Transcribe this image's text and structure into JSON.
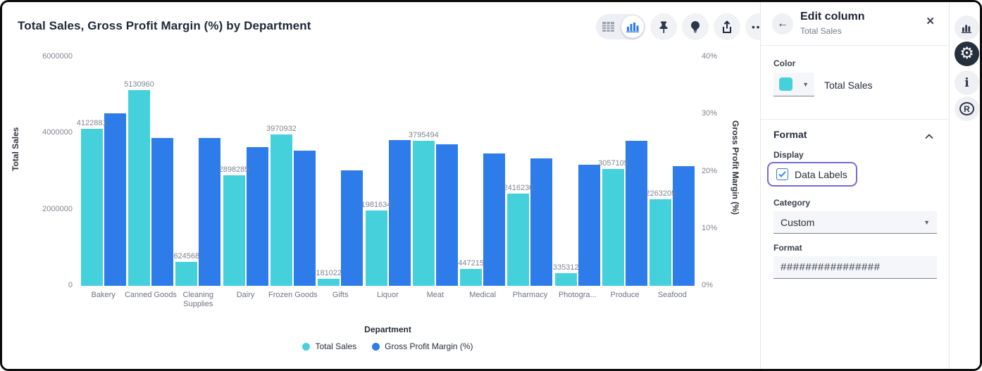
{
  "chart_data": {
    "type": "bar",
    "title": "Total Sales, Gross Profit Margin (%) by Department",
    "categories": [
      "Bakery",
      "Canned Goods",
      "Cleaning Supplies",
      "Dairy",
      "Frozen Goods",
      "Gifts",
      "Liquor",
      "Meat",
      "Medical",
      "Pharmacy",
      "Photogra...",
      "Produce",
      "Seafood"
    ],
    "series": [
      {
        "name": "Total Sales",
        "axis": "left",
        "color": "#45d1dc",
        "data_labels": true,
        "values": [
          4122881,
          5130960,
          624568,
          2898285,
          3970932,
          181022,
          1981634,
          3795494,
          447215,
          2416230,
          335312,
          3057105,
          2263205
        ]
      },
      {
        "name": "Gross Profit Margin (%)",
        "axis": "right",
        "color": "#2e7bea",
        "data_labels": false,
        "values": [
          30.2,
          25.9,
          25.9,
          24.3,
          23.6,
          20.2,
          25.5,
          24.8,
          23.1,
          22.3,
          21.2,
          25.3,
          20.9
        ]
      }
    ],
    "xlabel": "Department",
    "left_axis": {
      "label": "Total Sales",
      "max": 6000000,
      "ticks": [
        "6000000",
        "4000000",
        "2000000",
        "0"
      ]
    },
    "right_axis": {
      "label": "Gross Profit Margin (%)",
      "max": 40,
      "ticks": [
        "40%",
        "30%",
        "20%",
        "10%",
        "0%"
      ]
    },
    "grid": false,
    "legend_position": "bottom"
  },
  "toolbar": {
    "table_view_icon": "table-grid",
    "chart_view_icon": "bar-chart",
    "pin_icon": "pushpin",
    "explore_icon": "lightbulb",
    "export_icon": "share-up-arrow",
    "more_label": "•••"
  },
  "panel": {
    "title": "Edit column",
    "subtitle": "Total Sales",
    "back_icon": "←",
    "close_icon": "✕",
    "color_section": {
      "label": "Color",
      "swatch_color": "#45d1dc",
      "value": "Total Sales"
    },
    "format_section": {
      "heading": "Format",
      "display_label": "Display",
      "data_labels": {
        "label": "Data Labels",
        "checked": true,
        "focus_ring_color": "#7468e4"
      },
      "category_label": "Category",
      "category_value": "Custom",
      "format_label": "Format",
      "format_value": "################"
    }
  },
  "rail": {
    "items": [
      {
        "name": "chart-element",
        "selected": false
      },
      {
        "name": "settings",
        "selected": true
      },
      {
        "name": "info",
        "selected": false
      },
      {
        "name": "r-logo",
        "selected": false
      }
    ]
  }
}
